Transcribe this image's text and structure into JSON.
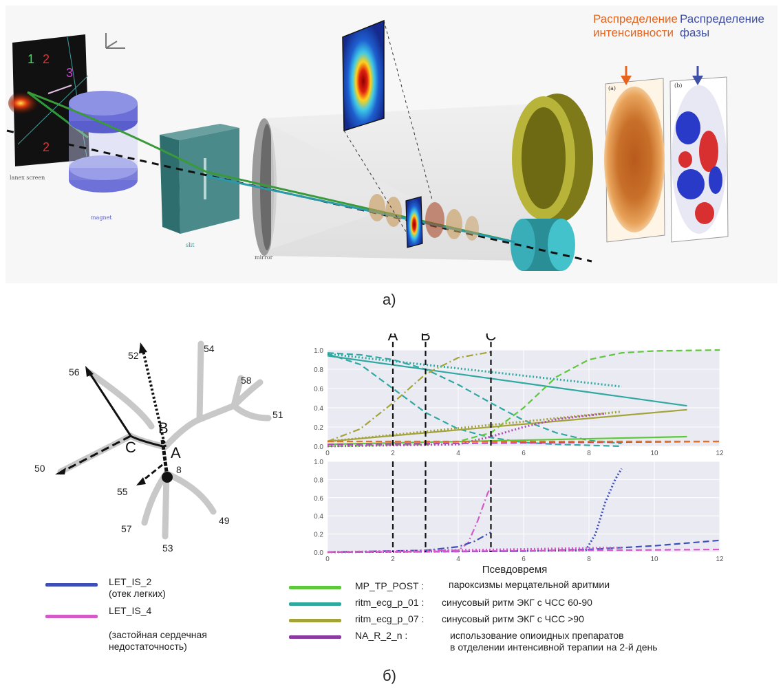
{
  "panel_a": {
    "caption": "а)",
    "intensity_title": [
      "Распределение",
      "интенсивности"
    ],
    "phase_title": [
      "Распределение",
      "фазы"
    ],
    "labels": {
      "lanex": "lanex screen",
      "magnet": "magnet",
      "slit": "slit",
      "mirror": "mirror",
      "inset_a": "(a)",
      "inset_b": "(b)",
      "region_1": "1",
      "region_2": "2",
      "region_3": "3",
      "region_2b": "2"
    },
    "colors": {
      "intensity": "#e8641c",
      "phase": "#3f4fa6"
    }
  },
  "panel_b": {
    "caption": "б)",
    "tree": {
      "leaves": [
        "56",
        "52",
        "54",
        "58",
        "51",
        "50",
        "55",
        "8",
        "57",
        "53",
        "49"
      ],
      "branch_points": [
        "B",
        "C",
        "A"
      ]
    },
    "chart_data": [
      {
        "type": "line",
        "x_range": [
          0,
          12
        ],
        "ylim": [
          0,
          1.0
        ],
        "xticks": [
          "0",
          "2",
          "4",
          "6",
          "8",
          "10",
          "12"
        ],
        "yticks": [
          "0.0",
          "0.2",
          "0.4",
          "0.6",
          "0.8",
          "1.0"
        ],
        "vlines": [
          {
            "label": "A",
            "x": 2
          },
          {
            "label": "B",
            "x": 3
          },
          {
            "label": "C",
            "x": 5
          }
        ],
        "series": [
          {
            "color": "#2ea8a0",
            "style": "solid",
            "x": [
              0,
              11
            ],
            "y": [
              0.94,
              0.42
            ]
          },
          {
            "color": "#2ea8a0",
            "style": "dotted",
            "x": [
              0,
              9
            ],
            "y": [
              0.96,
              0.62
            ]
          },
          {
            "color": "#2ea8a0",
            "style": "dashed",
            "x": [
              0,
              1,
              2,
              3,
              4,
              5,
              6,
              7,
              8,
              9
            ],
            "y": [
              0.96,
              0.85,
              0.6,
              0.35,
              0.18,
              0.09,
              0.04,
              0.02,
              0.01,
              0.0
            ]
          },
          {
            "color": "#2ea8a0",
            "style": "dashed",
            "x": [
              0,
              1,
              2,
              3,
              4,
              5,
              6,
              7,
              8,
              9
            ],
            "y": [
              0.97,
              0.95,
              0.9,
              0.8,
              0.64,
              0.45,
              0.27,
              0.14,
              0.06,
              0.03
            ]
          },
          {
            "color": "#5cc93a",
            "style": "dashed",
            "x": [
              0,
              3,
              4,
              5,
              6,
              7,
              8,
              9,
              10,
              12
            ],
            "y": [
              0.0,
              0.02,
              0.05,
              0.14,
              0.4,
              0.72,
              0.9,
              0.97,
              0.99,
              1.0
            ]
          },
          {
            "color": "#5cc93a",
            "style": "solid",
            "x": [
              0,
              11
            ],
            "y": [
              0.02,
              0.1
            ]
          },
          {
            "color": "#a3a33a",
            "style": "dashdot",
            "x": [
              0,
              1,
              2,
              3,
              4,
              5
            ],
            "y": [
              0.05,
              0.18,
              0.45,
              0.75,
              0.92,
              0.98
            ]
          },
          {
            "color": "#a3a33a",
            "style": "solid",
            "x": [
              0,
              11
            ],
            "y": [
              0.05,
              0.38
            ]
          },
          {
            "color": "#a3a33a",
            "style": "dotted",
            "x": [
              0,
              9
            ],
            "y": [
              0.05,
              0.36
            ]
          },
          {
            "color": "#b04ab4",
            "style": "dotted",
            "x": [
              0,
              4,
              5,
              6,
              7,
              8.5
            ],
            "y": [
              0.0,
              0.02,
              0.1,
              0.2,
              0.28,
              0.34
            ]
          },
          {
            "color": "#b04ab4",
            "style": "dashed",
            "x": [
              0,
              12
            ],
            "y": [
              0.02,
              0.05
            ]
          },
          {
            "color": "#e0702a",
            "style": "dashed",
            "x": [
              0,
              12
            ],
            "y": [
              0.05,
              0.05
            ]
          }
        ]
      },
      {
        "type": "line",
        "x_range": [
          0,
          12
        ],
        "ylim": [
          0,
          1.0
        ],
        "xticks": [
          "0",
          "2",
          "4",
          "6",
          "8",
          "10",
          "12"
        ],
        "yticks": [
          "0.0",
          "0.2",
          "0.4",
          "0.6",
          "0.8",
          "1.0"
        ],
        "xlabel": "Псевдовремя",
        "vlines": [
          {
            "label": "",
            "x": 2
          },
          {
            "label": "",
            "x": 3
          },
          {
            "label": "",
            "x": 5
          }
        ],
        "series": [
          {
            "color": "#d45ac8",
            "style": "dashdot",
            "x": [
              0,
              4,
              4.3,
              4.6,
              4.9,
              5.0
            ],
            "y": [
              0.0,
              0.02,
              0.1,
              0.35,
              0.65,
              0.72
            ]
          },
          {
            "color": "#3f4fb8",
            "style": "dashdot",
            "x": [
              0,
              3,
              4,
              4.5,
              5.0
            ],
            "y": [
              0.0,
              0.02,
              0.06,
              0.12,
              0.22
            ]
          },
          {
            "color": "#3f4fb8",
            "style": "dotted",
            "x": [
              0,
              7.9,
              8.2,
              8.5,
              8.8,
              9.0
            ],
            "y": [
              0.0,
              0.02,
              0.2,
              0.55,
              0.8,
              0.92
            ]
          },
          {
            "color": "#3f4fb8",
            "style": "dashed",
            "x": [
              0,
              6,
              8,
              10,
              12
            ],
            "y": [
              0.0,
              0.01,
              0.03,
              0.07,
              0.13
            ]
          },
          {
            "color": "#d45ac8",
            "style": "dashed",
            "x": [
              0,
              12
            ],
            "y": [
              0.0,
              0.03
            ]
          },
          {
            "color": "#d45ac8",
            "style": "dotted",
            "x": [
              0,
              9
            ],
            "y": [
              0.0,
              0.05
            ]
          }
        ]
      }
    ],
    "legend_left": [
      {
        "name": "LET_IS_2",
        "desc": [
          "(отек легких)"
        ],
        "color": "#3f4fb8"
      },
      {
        "name": "LET_IS_4",
        "desc": [
          "",
          "(застойная сердечная",
          "недостаточность)"
        ],
        "color": "#d45ac8"
      }
    ],
    "legend_right": [
      {
        "code": "MP_TP_POST :",
        "desc": "пароксизмы мерцательной аритмии",
        "color": "#5cc93a"
      },
      {
        "code": "ritm_ecg_p_01 :",
        "desc": "синусовый ритм ЭКГ с ЧСС 60-90",
        "color": "#2ea8a0"
      },
      {
        "code": "ritm_ecg_p_07 :",
        "desc": "синусовый ритм ЭКГ с ЧСС >90",
        "color": "#a3a33a"
      },
      {
        "code": "NA_R_2_n :",
        "desc": "использование опиоидных препаратов",
        "desc2": "в отделении интенсивной терапии на 2-й день",
        "color": "#8a3aa0"
      }
    ]
  }
}
